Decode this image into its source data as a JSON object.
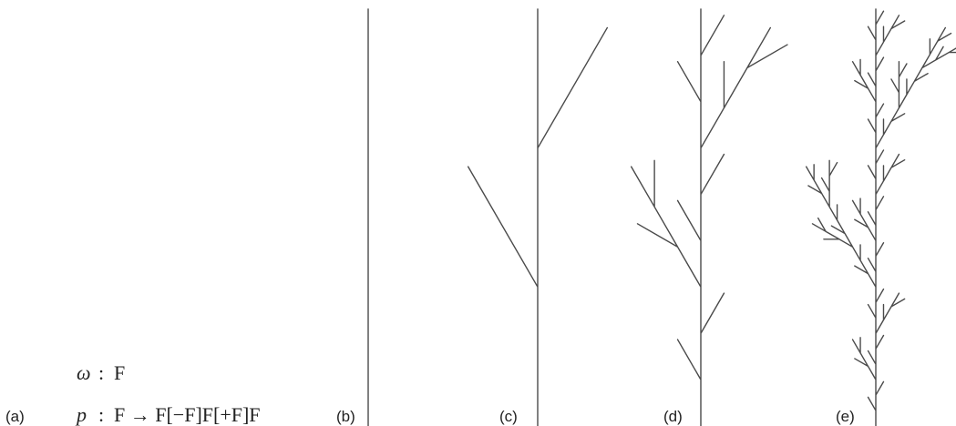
{
  "formula": {
    "axiom": {
      "symbol": "ω",
      "separator": ":",
      "word": "F"
    },
    "production": {
      "symbol": "p",
      "separator": ":",
      "rule": "F → F[−F]F[+F]F"
    }
  },
  "panels": [
    {
      "label": "(a)"
    },
    {
      "label": "(b)"
    },
    {
      "label": "(c)"
    },
    {
      "label": "(d)"
    },
    {
      "label": "(e)"
    }
  ]
}
